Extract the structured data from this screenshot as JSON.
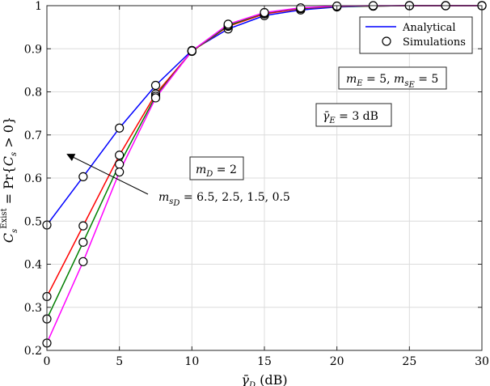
{
  "chart_data": {
    "type": "line",
    "xlabel": "γ̄_D (dB)",
    "ylabel": "C_s^Exist = Pr{C_s > 0}",
    "xlim": [
      0,
      30
    ],
    "ylim": [
      0.2,
      1.0
    ],
    "xticks": [
      "0",
      "5",
      "10",
      "15",
      "20",
      "25",
      "30"
    ],
    "yticks": [
      "0.2",
      "0.3",
      "0.4",
      "0.5",
      "0.6",
      "0.7",
      "0.8",
      "0.9",
      "1"
    ],
    "grid": true,
    "legend": {
      "position": "top-right",
      "entries": [
        {
          "label": "Analytical",
          "marker": "line",
          "color": "#0000ff"
        },
        {
          "label": "Simulations",
          "marker": "open-circle",
          "color": "#000000"
        }
      ]
    },
    "series": [
      {
        "color": "#0000ff",
        "x": [
          0,
          2.5,
          5,
          7.5,
          10,
          12.5,
          15,
          17.5,
          20,
          22.5,
          25,
          27.5,
          30
        ],
        "y": [
          0.491,
          0.603,
          0.716,
          0.815,
          0.896,
          0.946,
          0.977,
          0.99,
          0.997,
          0.999,
          1.0,
          1.0,
          1.0
        ]
      },
      {
        "color": "#ff0000",
        "x": [
          0,
          2.5,
          5,
          7.5,
          10,
          12.5,
          15,
          17.5,
          20,
          22.5,
          25,
          27.5,
          30
        ],
        "y": [
          0.325,
          0.489,
          0.653,
          0.795,
          0.894,
          0.952,
          0.981,
          0.993,
          0.998,
          0.999,
          1.0,
          1.0,
          1.0
        ]
      },
      {
        "color": "#008000",
        "x": [
          0,
          2.5,
          5,
          7.5,
          10,
          12.5,
          15,
          17.5,
          20,
          22.5,
          25,
          27.5,
          30
        ],
        "y": [
          0.273,
          0.451,
          0.632,
          0.79,
          0.894,
          0.954,
          0.983,
          0.994,
          0.998,
          0.999,
          1.0,
          1.0,
          1.0
        ]
      },
      {
        "color": "#ff00ff",
        "x": [
          0,
          2.5,
          5,
          7.5,
          10,
          12.5,
          15,
          17.5,
          20,
          22.5,
          25,
          27.5,
          30
        ],
        "y": [
          0.217,
          0.406,
          0.614,
          0.786,
          0.895,
          0.957,
          0.984,
          0.995,
          0.999,
          1.0,
          1.0,
          1.0,
          1.0
        ]
      }
    ],
    "annotations": [
      {
        "text": "m_E = 5, m_sE = 5"
      },
      {
        "text": "γ̄_E = 3 dB"
      },
      {
        "text": "m_D = 2"
      },
      {
        "text": "m_sD = 6.5, 2.5, 1.5, 0.5"
      }
    ]
  }
}
